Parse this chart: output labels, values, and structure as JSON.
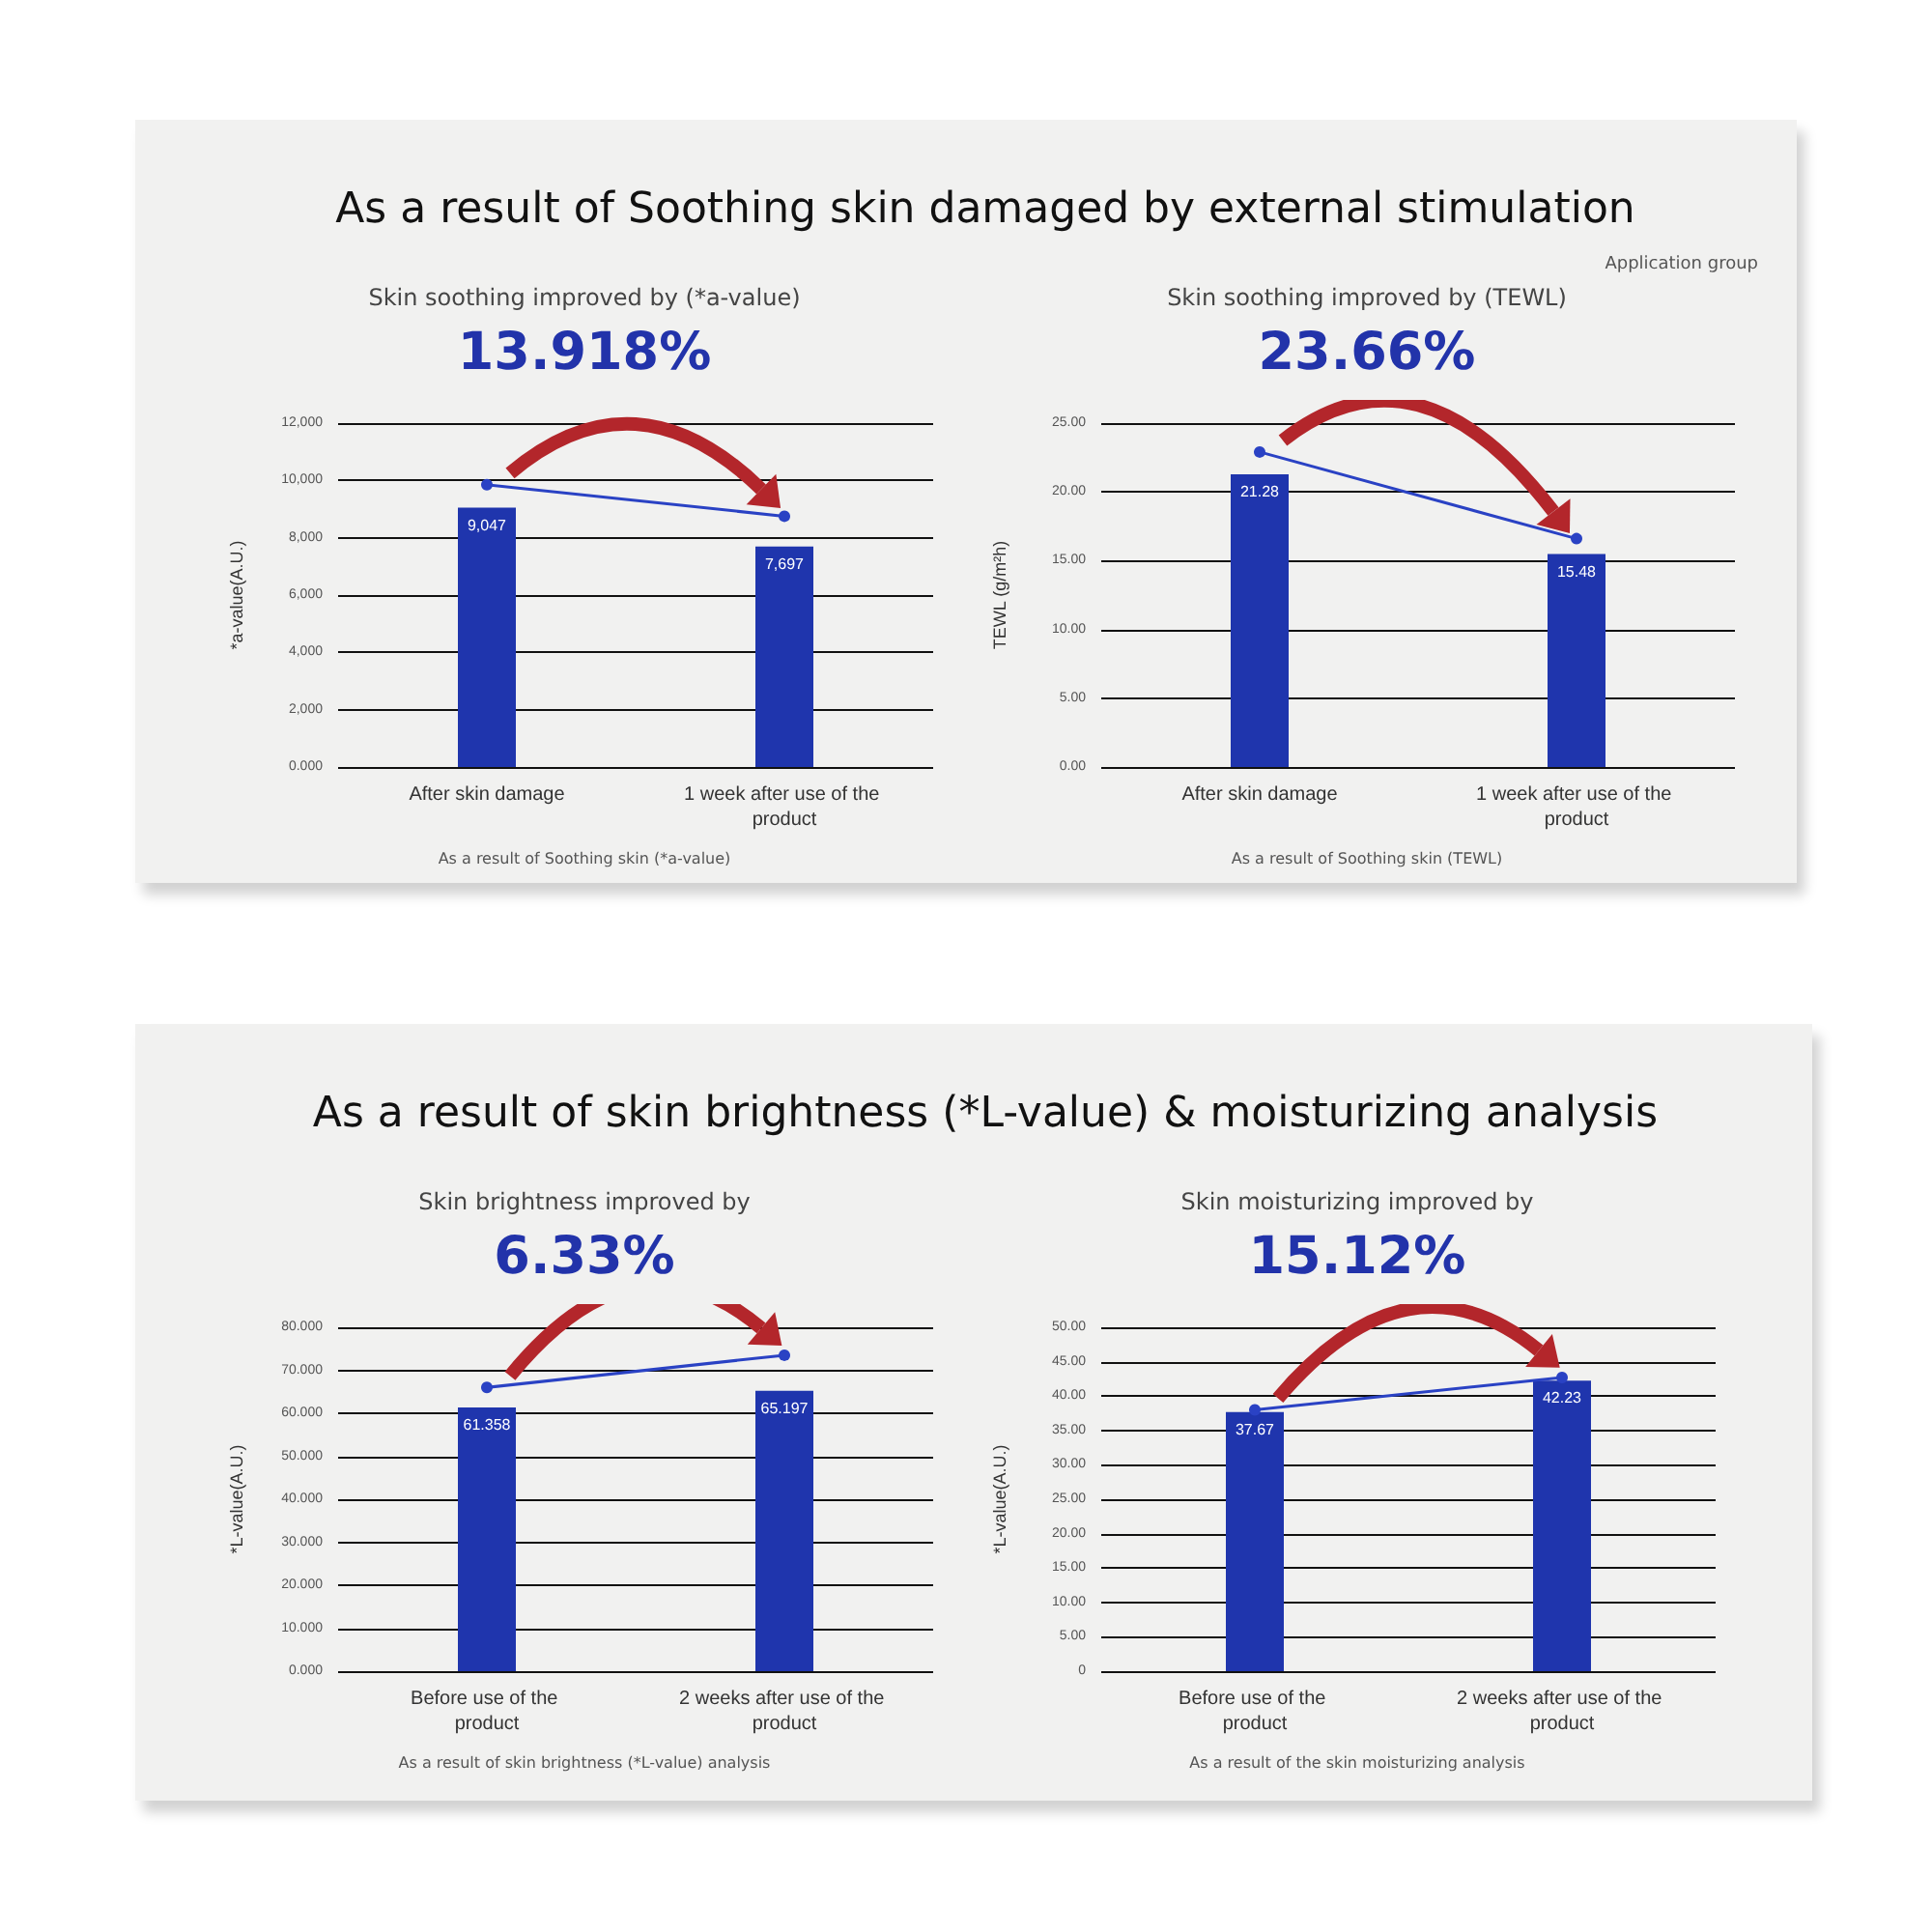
{
  "chart_data": [
    {
      "type": "bar",
      "title": "Skin soothing improved by (*a-value)",
      "subtitle": "13.918%",
      "ylabel": "*a-value(A.U.)",
      "annotations": [
        "As a result of Soothing skin damaged by external stimulation",
        "As a result of Soothing skin (*a-value)"
      ],
      "categories": [
        "After skin damage",
        "1 week after use of the product"
      ],
      "series": [
        {
          "color": "#1f35ad",
          "values": [
            9047,
            7697
          ],
          "value_labels": [
            "9,047",
            "7,697"
          ]
        },
        {
          "type": "line",
          "color": "#2a42c4",
          "values": [
            9850,
            8750
          ]
        }
      ],
      "marker": "circle",
      "ylim": [
        0,
        12000
      ],
      "yticks": [
        {
          "value": 0,
          "label": "0.000"
        },
        {
          "value": 2000,
          "label": "2,000"
        },
        {
          "value": 4000,
          "label": "4,000"
        },
        {
          "value": 6000,
          "label": "6,000"
        },
        {
          "value": 8000,
          "label": "8,000"
        },
        {
          "value": 10000,
          "label": "10,000"
        },
        {
          "value": 12000,
          "label": "12,000"
        }
      ],
      "grid": "y"
    },
    {
      "type": "bar",
      "title": "Skin soothing improved by (TEWL)",
      "subtitle": "23.66%",
      "ylabel": "TEWL (g/m²h)",
      "annotations": [
        "Application group",
        "As a result of Soothing skin (TEWL)"
      ],
      "categories": [
        "After skin damage",
        "1 week after use of the product"
      ],
      "series": [
        {
          "color": "#1f35ad",
          "values": [
            21.28,
            15.48
          ],
          "value_labels": [
            "21.28",
            "15.48"
          ]
        },
        {
          "type": "line",
          "color": "#2a42c4",
          "values": [
            22.9,
            16.6
          ]
        }
      ],
      "marker": "circle",
      "ylim": [
        0,
        25
      ],
      "yticks": [
        {
          "value": 0,
          "label": "0.00"
        },
        {
          "value": 5,
          "label": "5.00"
        },
        {
          "value": 10,
          "label": "10.00"
        },
        {
          "value": 15,
          "label": "15.00"
        },
        {
          "value": 20,
          "label": "20.00"
        },
        {
          "value": 25,
          "label": "25.00"
        }
      ],
      "grid": "y"
    },
    {
      "type": "bar",
      "title": "Skin brightness improved by",
      "subtitle": "6.33%",
      "ylabel": "*L-value(A.U.)",
      "annotations": [
        "As a result of skin brightness (*L-value) & moisturizing analysis",
        "As a result of skin brightness (*L-value) analysis"
      ],
      "categories": [
        "Before use of the product",
        "2 weeks after use of the product"
      ],
      "series": [
        {
          "color": "#1f35ad",
          "values": [
            61.358,
            65.197
          ],
          "value_labels": [
            "61.358",
            "65.197"
          ]
        },
        {
          "type": "line",
          "color": "#2a42c4",
          "values": [
            66,
            73.5
          ]
        }
      ],
      "marker": "circle",
      "ylim": [
        0,
        80
      ],
      "yticks": [
        {
          "value": 0,
          "label": "0.000"
        },
        {
          "value": 10,
          "label": "10.000"
        },
        {
          "value": 20,
          "label": "20.000"
        },
        {
          "value": 30,
          "label": "30.000"
        },
        {
          "value": 40,
          "label": "40.000"
        },
        {
          "value": 50,
          "label": "50.000"
        },
        {
          "value": 60,
          "label": "60.000"
        },
        {
          "value": 70,
          "label": "70.000"
        },
        {
          "value": 80,
          "label": "80.000"
        }
      ],
      "grid": "y"
    },
    {
      "type": "bar",
      "title": "Skin moisturizing improved by",
      "subtitle": "15.12%",
      "ylabel": "*L-value(A.U.)",
      "annotations": [
        "As a result of the skin moisturizing analysis"
      ],
      "categories": [
        "Before use of the product",
        "2 weeks after use of the product"
      ],
      "series": [
        {
          "color": "#1f35ad",
          "values": [
            37.67,
            42.23
          ],
          "value_labels": [
            "37.67",
            "42.23"
          ]
        },
        {
          "type": "line",
          "color": "#2a42c4",
          "values": [
            38,
            42.7
          ]
        }
      ],
      "marker": "circle",
      "ylim": [
        0,
        50
      ],
      "yticks": [
        0,
        {
          "value": 5,
          "label": "5.00"
        },
        {
          "value": 10,
          "label": "10.00"
        },
        {
          "value": 15,
          "label": "15.00"
        },
        {
          "value": 20,
          "label": "20.00"
        },
        {
          "value": 25,
          "label": "25.00"
        },
        {
          "value": 30,
          "label": "30.00"
        },
        {
          "value": 35,
          "label": "35.00"
        },
        {
          "value": 40,
          "label": "40.00"
        },
        {
          "value": 45,
          "label": "45.00"
        },
        {
          "value": 50,
          "label": "50.00"
        }
      ],
      "grid": "y"
    }
  ]
}
